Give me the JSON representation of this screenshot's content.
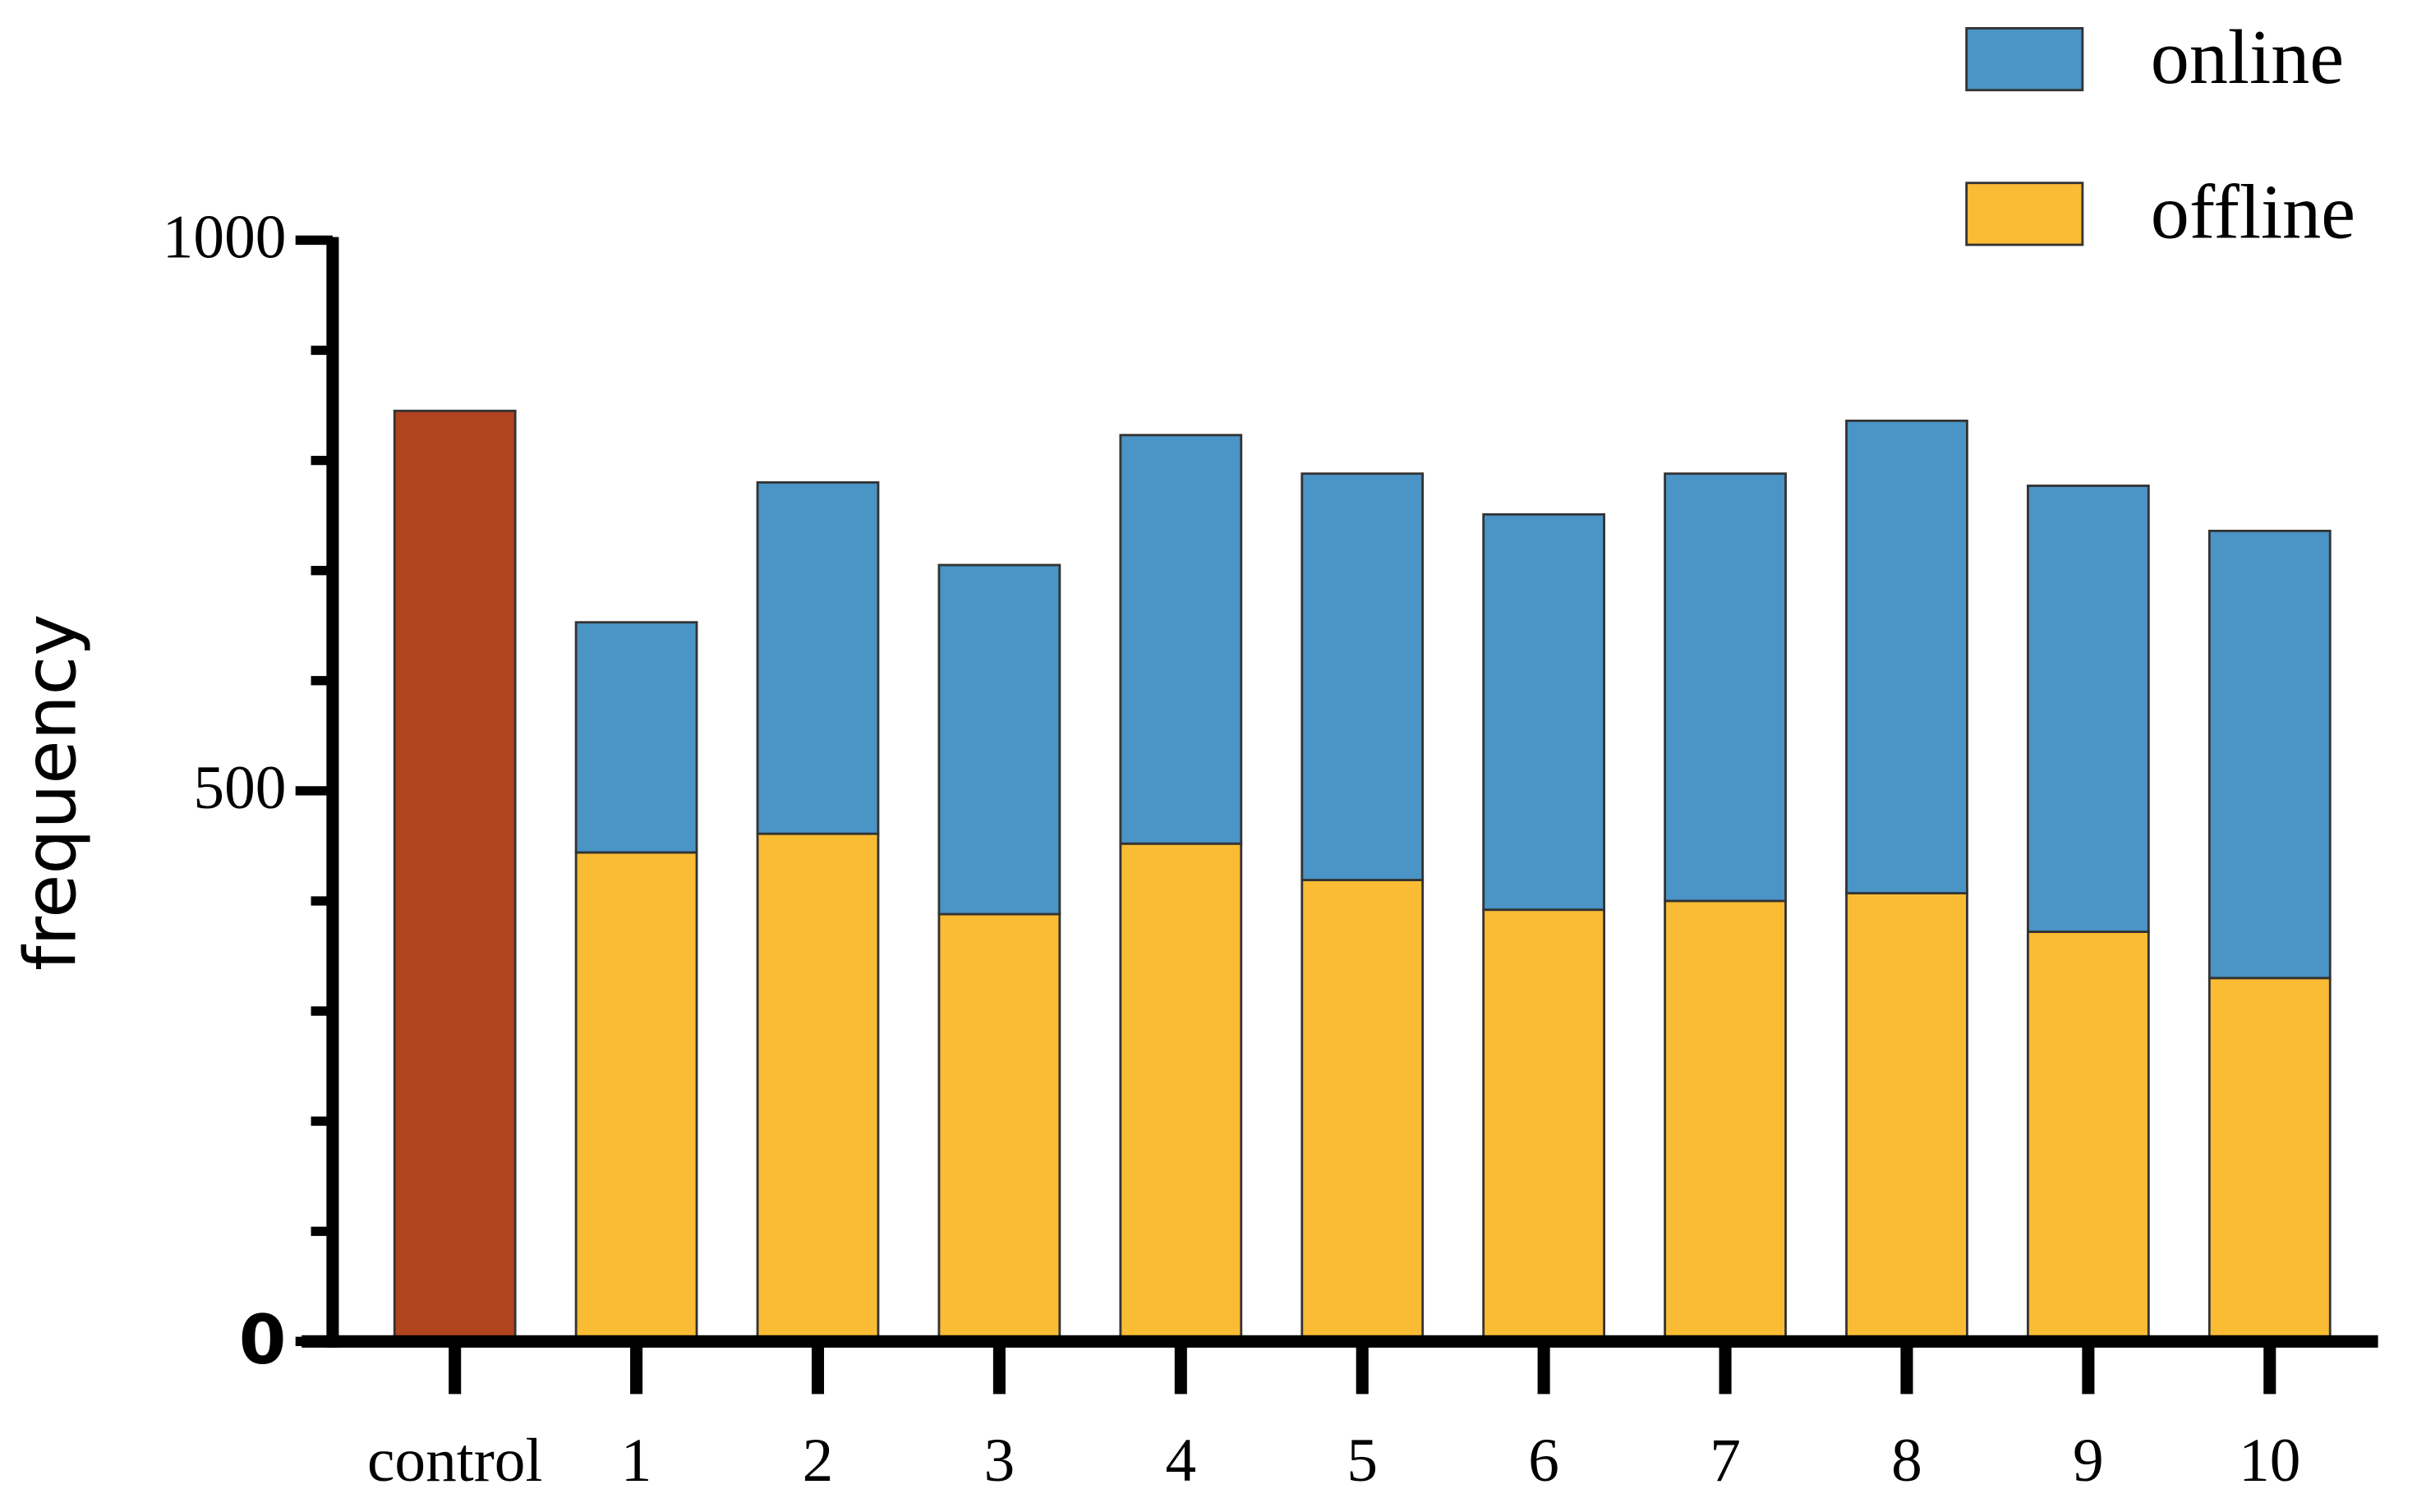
{
  "chart_data": {
    "type": "stacked_bar",
    "y_label": "frequency",
    "categories": [
      "control",
      "1",
      "2",
      "3",
      "4",
      "5",
      "6",
      "7",
      "8",
      "9",
      "10"
    ],
    "series": [
      {
        "name": "online",
        "color": "#4a94c6",
        "values": [
          null,
          209,
          319,
          317,
          371,
          369,
          359,
          388,
          429,
          405,
          406
        ]
      },
      {
        "name": "offline",
        "color": "#fbbc35",
        "values": [
          null,
          444,
          461,
          388,
          452,
          419,
          392,
          400,
          407,
          372,
          330
        ]
      },
      {
        "color": "#b0441e",
        "values": [
          845,
          null,
          null,
          null,
          null,
          null,
          null,
          null,
          null,
          null,
          null
        ]
      }
    ],
    "ylim": [
      0,
      1000
    ],
    "yticks": [
      0,
      500,
      1000
    ],
    "yminorticks": [
      100,
      200,
      300,
      400,
      600,
      700,
      800,
      900
    ],
    "legend": "top-right"
  }
}
